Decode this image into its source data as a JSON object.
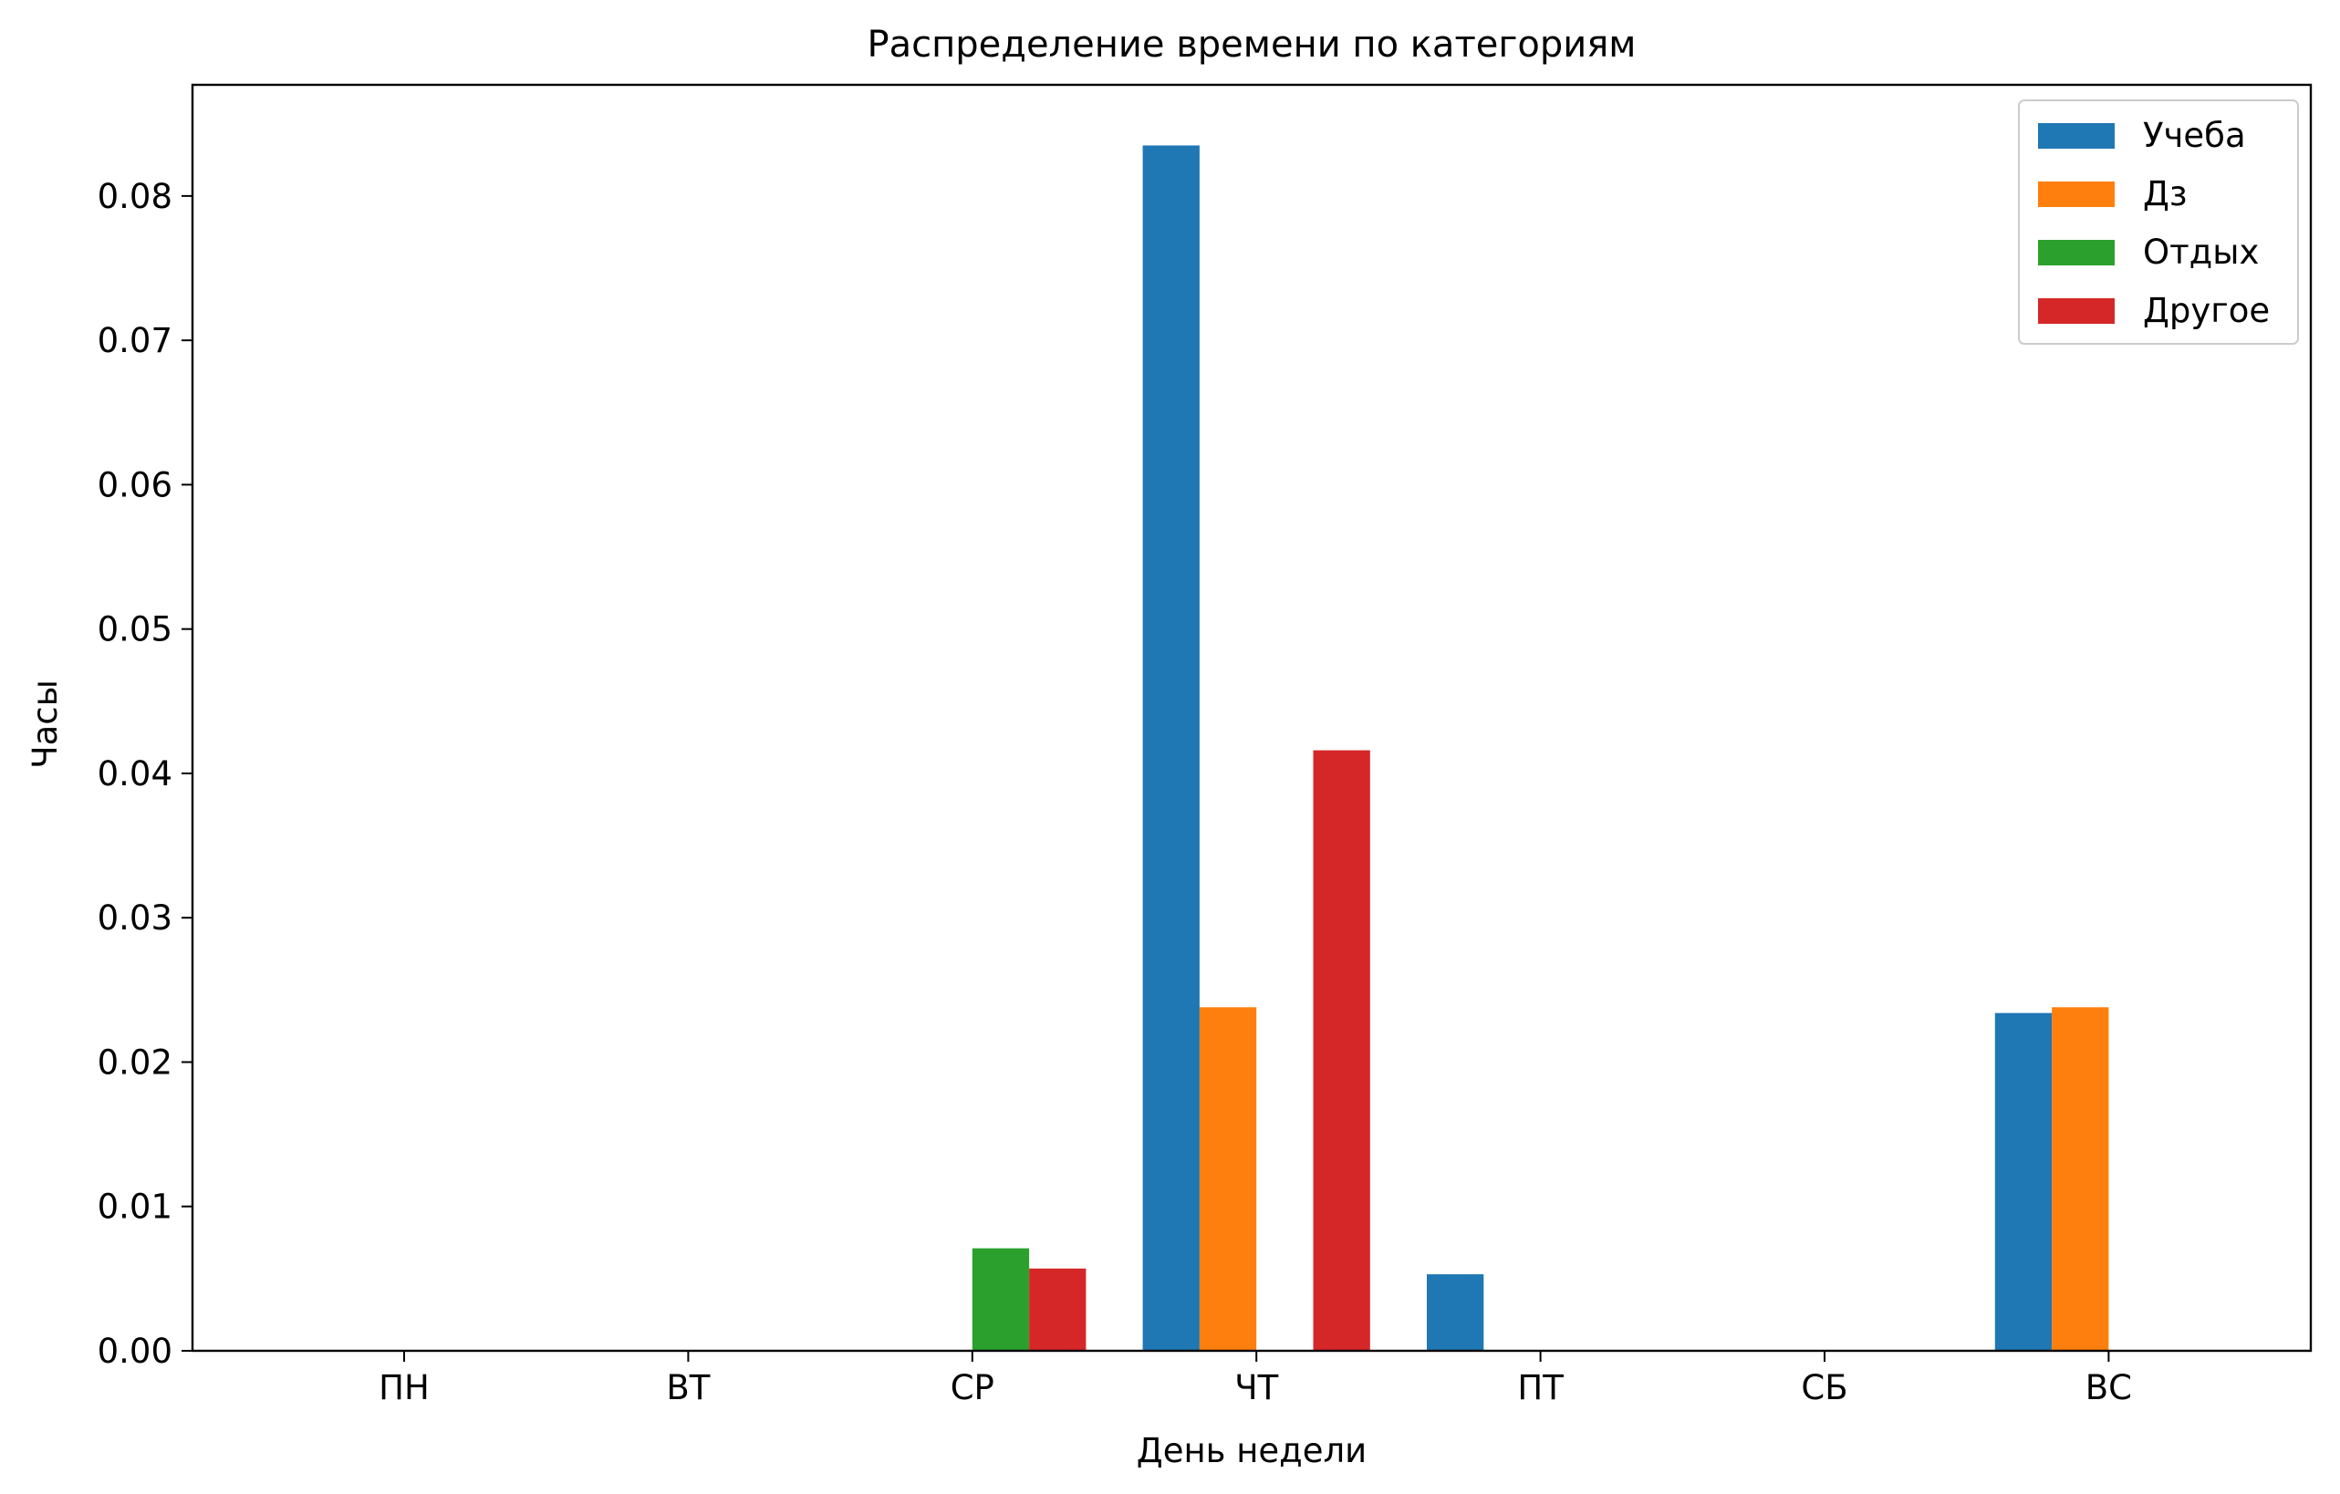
{
  "chart_data": {
    "type": "bar",
    "title": "Распределение времени по категориям",
    "xlabel": "День недели",
    "ylabel": "Часы",
    "categories": [
      "ПН",
      "ВТ",
      "СР",
      "ЧТ",
      "ПТ",
      "СБ",
      "ВС"
    ],
    "ylim": [
      0,
      0.0877
    ],
    "yticks": [
      "0.00",
      "0.01",
      "0.02",
      "0.03",
      "0.04",
      "0.05",
      "0.06",
      "0.07",
      "0.08"
    ],
    "grid": false,
    "legend_position": "top-right",
    "series": [
      {
        "name": "Учеба",
        "color": "#1f77b4",
        "values": [
          0,
          0,
          0,
          0.0835,
          0.0053,
          0,
          0.0234
        ]
      },
      {
        "name": "Дз",
        "color": "#ff7f0e",
        "values": [
          0,
          0,
          0,
          0.0238,
          0,
          0,
          0.0238
        ]
      },
      {
        "name": "Отдых",
        "color": "#2ca02c",
        "values": [
          0,
          0,
          0.0071,
          0,
          0,
          0,
          0
        ]
      },
      {
        "name": "Другое",
        "color": "#d62728",
        "values": [
          0,
          0,
          0.0057,
          0.0416,
          0,
          0,
          0
        ]
      }
    ]
  }
}
